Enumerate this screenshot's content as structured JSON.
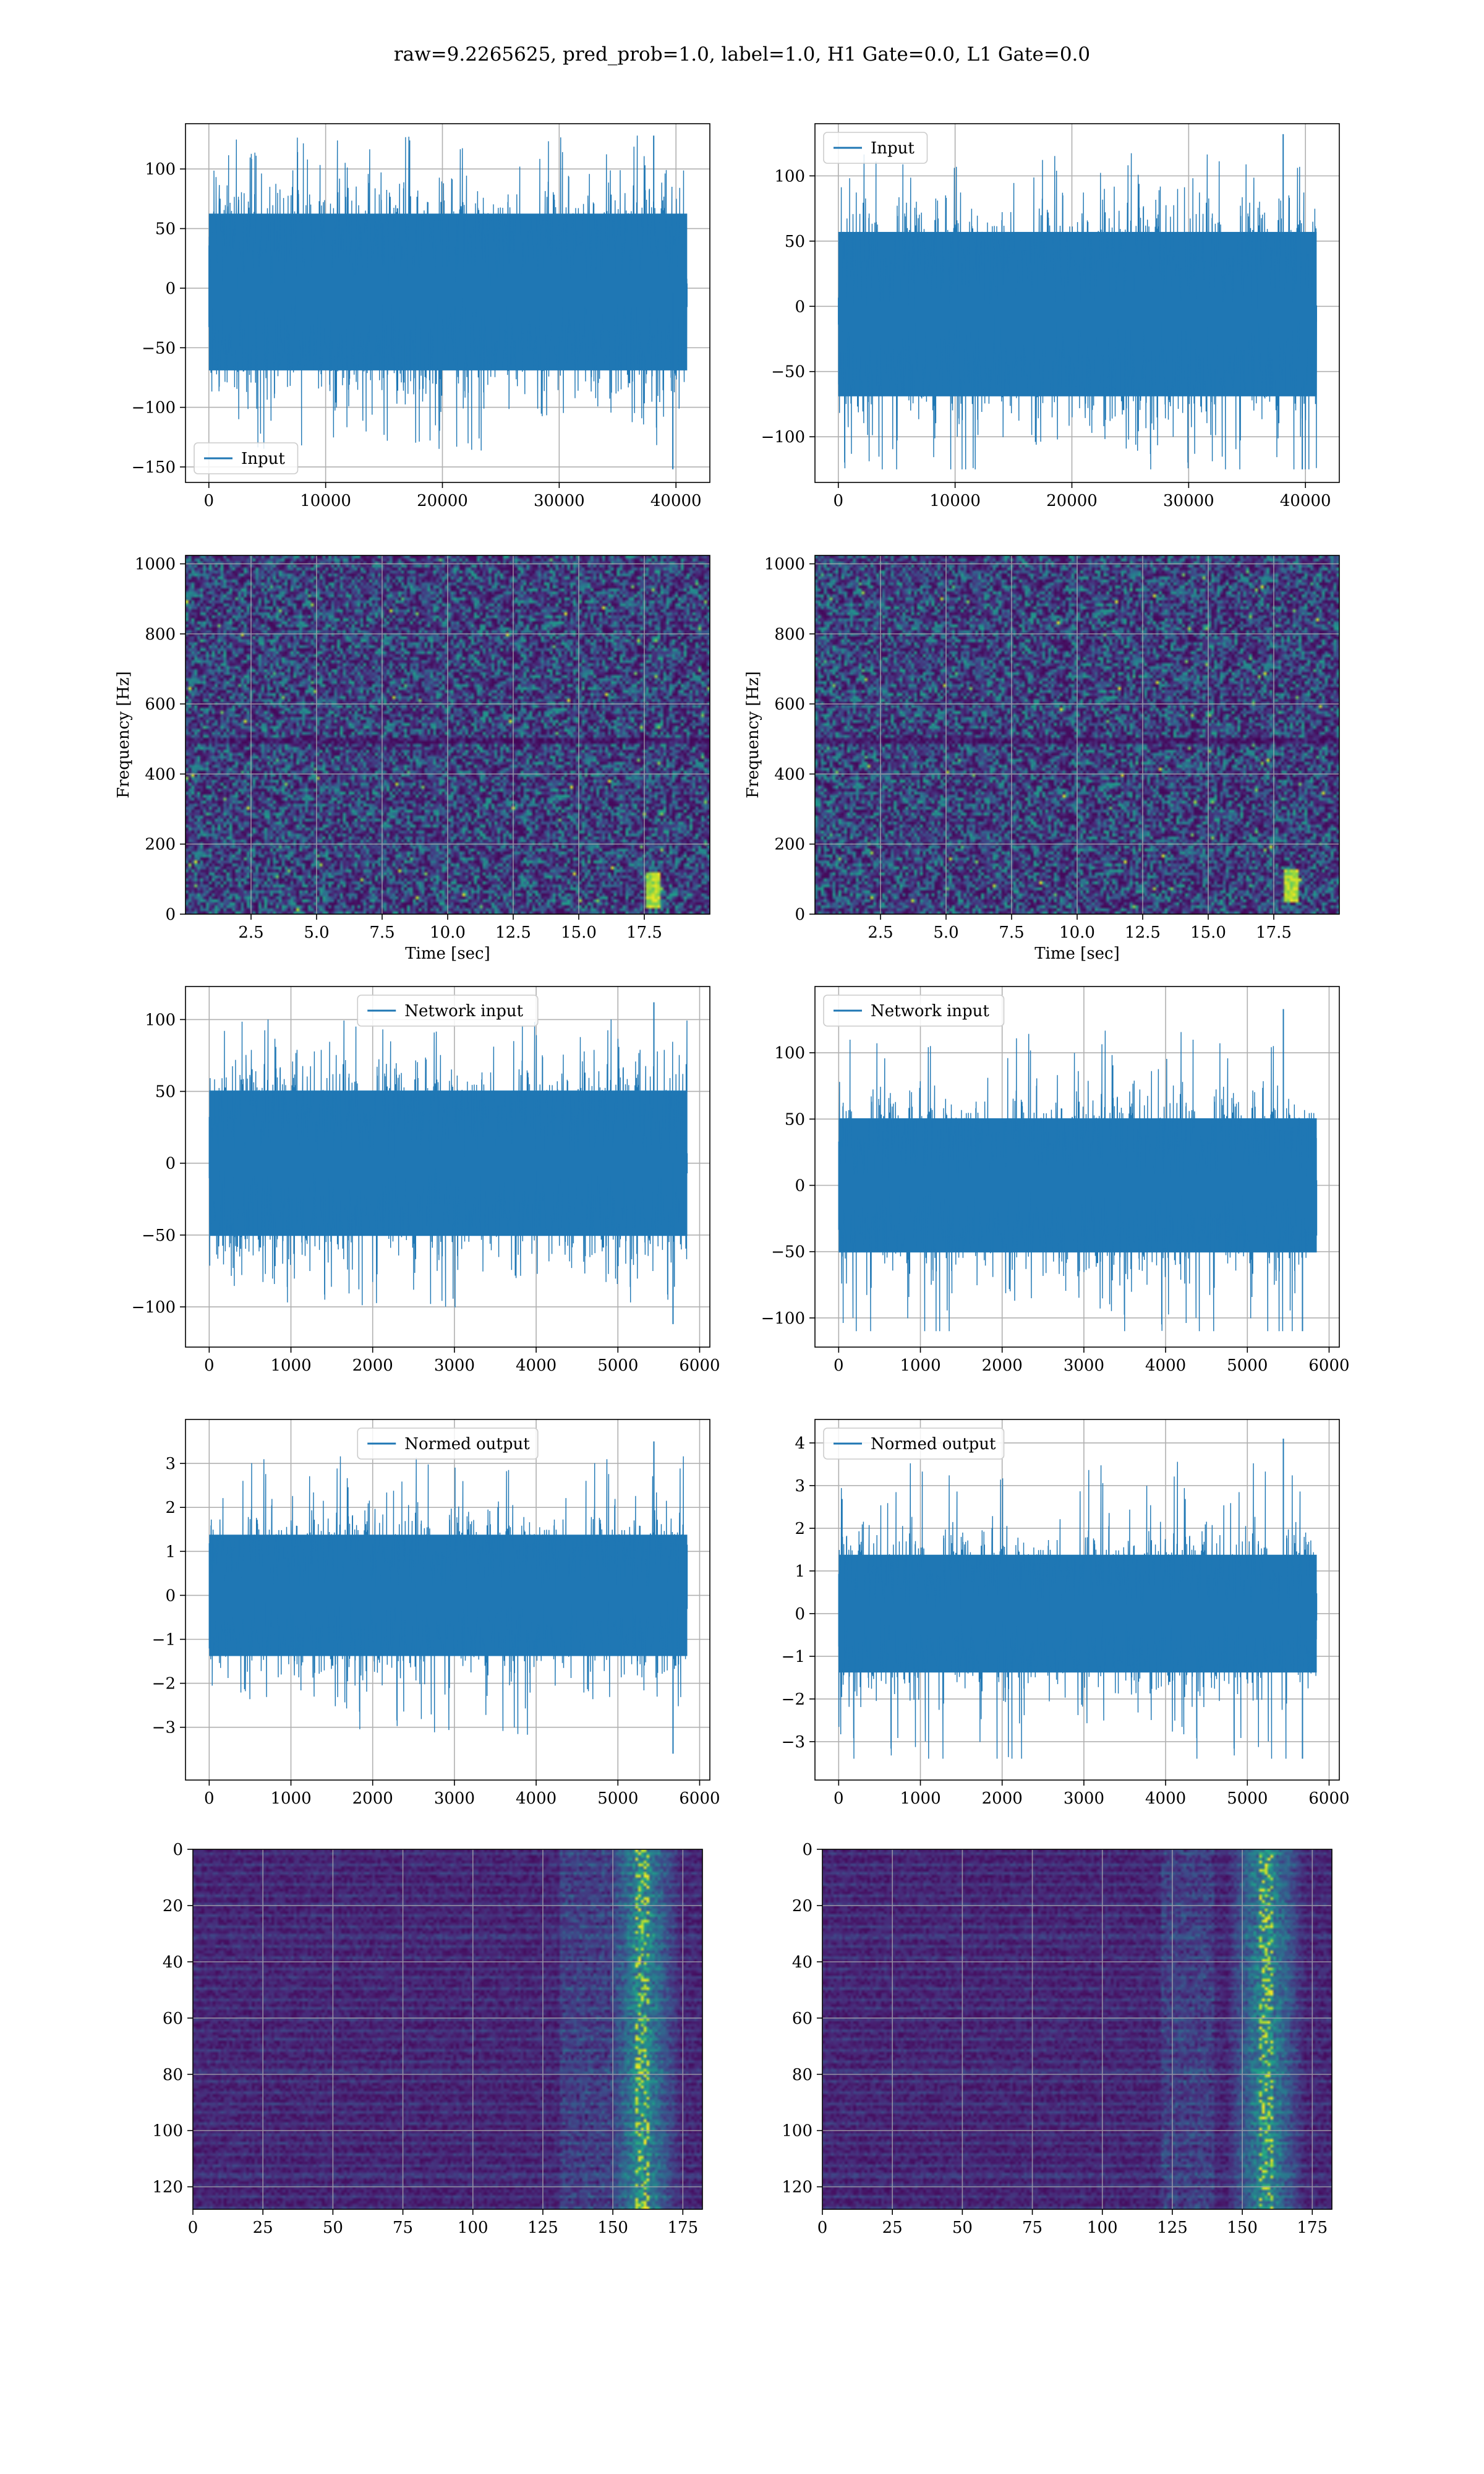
{
  "suptitle": "raw=9.2265625, pred_prob=1.0, label=1.0, H1 Gate=0.0, L1 Gate=0.0",
  "colors": {
    "series": "#1f77b4",
    "grid": "#b0b0b0",
    "cmap": "viridis"
  },
  "chart_data": [
    {
      "id": "h1-input",
      "type": "line",
      "legend": [
        "Input"
      ],
      "legend_loc": "lower-left",
      "xlim": [
        -2000,
        42900
      ],
      "ylim": [
        -163,
        138
      ],
      "xticks": [
        0,
        10000,
        20000,
        30000,
        40000
      ],
      "yticks": [
        -150,
        -100,
        -50,
        0,
        50,
        100
      ],
      "xlabel": "",
      "ylabel": "",
      "grid": true,
      "series": [
        {
          "n": 40960,
          "envelope": [
            -75,
            68
          ],
          "peaks": [
            -152,
            128
          ]
        }
      ]
    },
    {
      "id": "l1-input",
      "type": "line",
      "legend": [
        "Input"
      ],
      "legend_loc": "upper-left",
      "xlim": [
        -2000,
        42900
      ],
      "ylim": [
        -135,
        140
      ],
      "xticks": [
        0,
        10000,
        20000,
        30000,
        40000
      ],
      "yticks": [
        -100,
        -50,
        0,
        50,
        100
      ],
      "xlabel": "",
      "ylabel": "",
      "grid": true,
      "series": [
        {
          "n": 40960,
          "envelope": [
            -75,
            62
          ],
          "peaks": [
            -125,
            132
          ]
        }
      ]
    },
    {
      "id": "h1-spectrogram",
      "type": "heatmap",
      "legend": [],
      "xlim": [
        0,
        20
      ],
      "ylim": [
        0,
        1024
      ],
      "xticks": [
        2.5,
        5.0,
        7.5,
        10.0,
        12.5,
        15.0,
        17.5
      ],
      "yticks": [
        0,
        200,
        400,
        600,
        800,
        1000
      ],
      "xlabel": "Time [sec]",
      "ylabel": "Frequency [Hz]",
      "grid": true,
      "features": [
        {
          "t": 17.8,
          "f": [
            20,
            120
          ]
        },
        {
          "f_band": 500
        }
      ]
    },
    {
      "id": "l1-spectrogram",
      "type": "heatmap",
      "legend": [],
      "xlim": [
        0,
        20
      ],
      "ylim": [
        0,
        1024
      ],
      "xticks": [
        2.5,
        5.0,
        7.5,
        10.0,
        12.5,
        15.0,
        17.5
      ],
      "yticks": [
        0,
        200,
        400,
        600,
        800,
        1000
      ],
      "xlabel": "Time [sec]",
      "ylabel": "Frequency [Hz]",
      "grid": true,
      "features": [
        {
          "t": 18.1,
          "f": [
            40,
            130
          ]
        },
        {
          "f_band": 500
        }
      ]
    },
    {
      "id": "h1-network-input",
      "type": "line",
      "legend": [
        "Network input"
      ],
      "legend_loc": "upper-center",
      "xlim": [
        -290,
        6125
      ],
      "ylim": [
        -128,
        123
      ],
      "xticks": [
        0,
        1000,
        2000,
        3000,
        4000,
        5000,
        6000
      ],
      "yticks": [
        -100,
        -50,
        0,
        50,
        100
      ],
      "xlabel": "",
      "ylabel": "",
      "grid": true,
      "series": [
        {
          "n": 5850,
          "envelope": [
            -55,
            55
          ],
          "peaks": [
            -112,
            112
          ]
        }
      ]
    },
    {
      "id": "l1-network-input",
      "type": "line",
      "legend": [
        "Network input"
      ],
      "legend_loc": "upper-left",
      "xlim": [
        -290,
        6125
      ],
      "ylim": [
        -122,
        150
      ],
      "xticks": [
        0,
        1000,
        2000,
        3000,
        4000,
        5000,
        6000
      ],
      "yticks": [
        -100,
        -50,
        0,
        50,
        100
      ],
      "xlabel": "",
      "ylabel": "",
      "grid": true,
      "series": [
        {
          "n": 5850,
          "envelope": [
            -55,
            55
          ],
          "peaks": [
            -110,
            133
          ]
        }
      ]
    },
    {
      "id": "h1-normed-output",
      "type": "line",
      "legend": [
        "Normed output"
      ],
      "legend_loc": "upper-center",
      "xlim": [
        -290,
        6125
      ],
      "ylim": [
        -4.2,
        4.0
      ],
      "xticks": [
        0,
        1000,
        2000,
        3000,
        4000,
        5000,
        6000
      ],
      "yticks": [
        -3,
        -2,
        -1,
        0,
        1,
        2,
        3
      ],
      "xlabel": "",
      "ylabel": "",
      "grid": true,
      "series": [
        {
          "n": 5850,
          "envelope": [
            -1.5,
            1.5
          ],
          "peaks": [
            -3.6,
            3.5
          ]
        }
      ]
    },
    {
      "id": "l1-normed-output",
      "type": "line",
      "legend": [
        "Normed output"
      ],
      "legend_loc": "upper-left",
      "xlim": [
        -290,
        6125
      ],
      "ylim": [
        -3.9,
        4.55
      ],
      "xticks": [
        0,
        1000,
        2000,
        3000,
        4000,
        5000,
        6000
      ],
      "yticks": [
        -3,
        -2,
        -1,
        0,
        1,
        2,
        3,
        4
      ],
      "xlabel": "",
      "ylabel": "",
      "grid": true,
      "series": [
        {
          "n": 5850,
          "envelope": [
            -1.5,
            1.5
          ],
          "peaks": [
            -3.4,
            4.1
          ]
        }
      ]
    },
    {
      "id": "h1-feature-map",
      "type": "heatmap",
      "legend": [],
      "xlim": [
        0,
        182
      ],
      "ylim": [
        128,
        0
      ],
      "xticks": [
        0,
        25,
        50,
        75,
        100,
        125,
        150,
        175
      ],
      "yticks": [
        0,
        20,
        40,
        60,
        80,
        100,
        120
      ],
      "xlabel": "",
      "ylabel": "",
      "grid": true,
      "rows": 128,
      "cols": 182,
      "features": [
        {
          "cols": [
            150,
            180
          ],
          "peak_col": 160
        }
      ]
    },
    {
      "id": "l1-feature-map",
      "type": "heatmap",
      "legend": [],
      "xlim": [
        0,
        182
      ],
      "ylim": [
        128,
        0
      ],
      "xticks": [
        0,
        25,
        50,
        75,
        100,
        125,
        150,
        175
      ],
      "yticks": [
        0,
        20,
        40,
        60,
        80,
        100,
        120
      ],
      "xlabel": "",
      "ylabel": "",
      "grid": true,
      "rows": 128,
      "cols": 182,
      "features": [
        {
          "cols": [
            140,
            180
          ],
          "peak_col": 158
        }
      ]
    }
  ]
}
